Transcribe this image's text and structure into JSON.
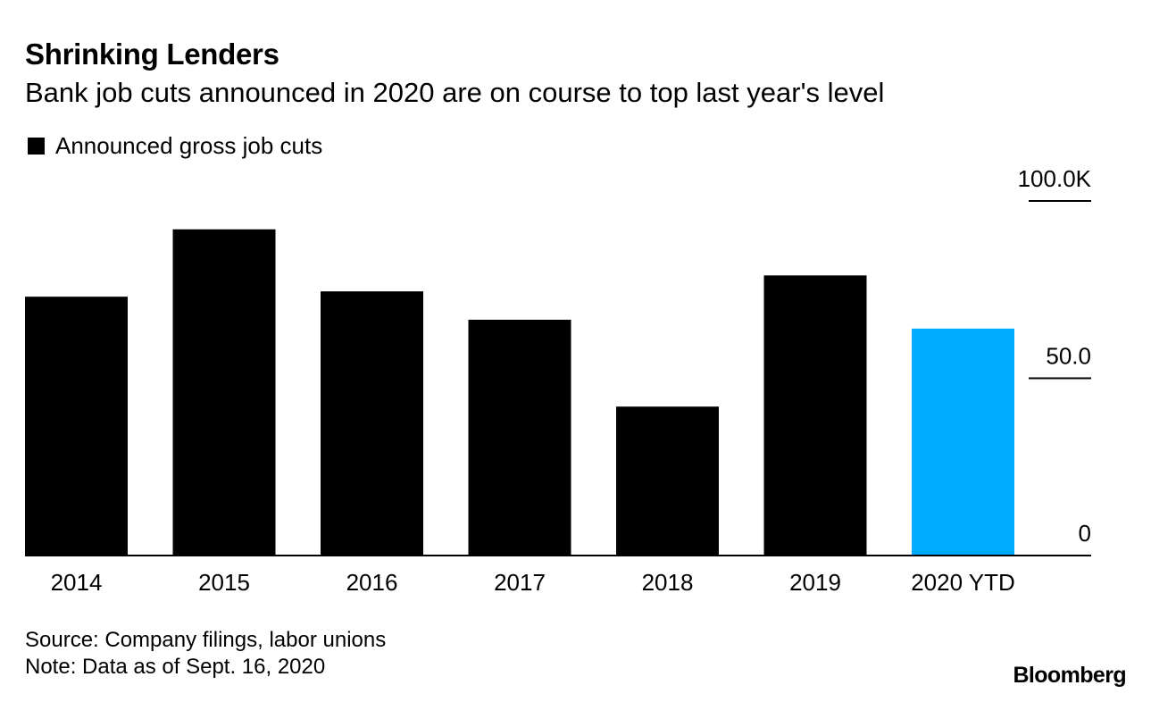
{
  "chart_data": {
    "type": "bar",
    "title": "Shrinking Lenders",
    "subtitle": "Bank job cuts announced in 2020 are on course to top last year's level",
    "legend": {
      "label": "Announced gross job cuts",
      "color": "#000000",
      "position": "top-left"
    },
    "categories": [
      "2014",
      "2015",
      "2016",
      "2017",
      "2018",
      "2019",
      "2020 YTD"
    ],
    "series": [
      {
        "name": "Announced gross job cuts",
        "values": [
          73,
          92,
          74.5,
          66.5,
          42,
          79,
          64
        ]
      }
    ],
    "bar_colors": [
      "#000000",
      "#000000",
      "#000000",
      "#000000",
      "#000000",
      "#000000",
      "#00aaff"
    ],
    "ylim": [
      0,
      100
    ],
    "yticks": [
      {
        "value": 0,
        "label": "0"
      },
      {
        "value": 50,
        "label": "50.0"
      },
      {
        "value": 100,
        "label": "100.0K"
      }
    ],
    "yaxis_side": "right",
    "grid": false
  },
  "footer": {
    "source": "Source: Company filings, labor unions",
    "note": "Note: Data as of Sept. 16, 2020",
    "brand": "Bloomberg"
  }
}
